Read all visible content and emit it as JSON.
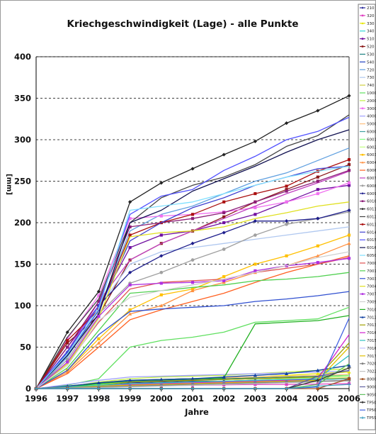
{
  "chart_data": {
    "type": "line",
    "title": "Kriechgeschwindigkeit (Lage) - alle Punkte",
    "xlabel": "Jahre",
    "ylabel": "[mm]",
    "x": [
      1996,
      1997,
      1998,
      1999,
      2000,
      2001,
      2002,
      2003,
      2004,
      2005,
      2006
    ],
    "xlim": [
      1996,
      2006
    ],
    "ylim": [
      0,
      400
    ],
    "yticks": [
      0,
      50,
      100,
      150,
      200,
      250,
      300,
      350,
      400
    ],
    "grid": "horizontal dashed",
    "legend_position": "right",
    "series": [
      {
        "name": "210",
        "color": "#2a2a9a",
        "marker": "diamond",
        "values": [
          0,
          1,
          4,
          7,
          8,
          9,
          9,
          10,
          11,
          12,
          12
        ]
      },
      {
        "name": "320",
        "color": "#e040c0",
        "marker": "square",
        "values": [
          0,
          0.5,
          2,
          3,
          3.5,
          4,
          4.5,
          5,
          5,
          5.5,
          6
        ]
      },
      {
        "name": "330",
        "color": "#e6e600",
        "marker": "triangle",
        "values": [
          0,
          2,
          6,
          9,
          11,
          12,
          13,
          14,
          16,
          18,
          20
        ]
      },
      {
        "name": "340",
        "color": "#30d8d8",
        "marker": "none",
        "values": [
          0,
          1,
          3,
          5,
          6,
          7,
          8,
          9,
          10,
          11,
          12
        ]
      },
      {
        "name": "510",
        "color": "#7010a0",
        "marker": "square",
        "values": [
          0,
          50,
          100,
          170,
          185,
          190,
          200,
          210,
          225,
          240,
          245
        ]
      },
      {
        "name": "520",
        "color": "#8b1a1a",
        "marker": "square",
        "values": [
          0,
          55,
          88,
          155,
          175,
          190,
          207,
          225,
          240,
          255,
          270
        ]
      },
      {
        "name": "530",
        "color": "#1a8080",
        "marker": "none",
        "values": [
          0,
          3,
          6,
          9,
          10,
          11,
          12,
          13,
          14,
          15,
          16
        ]
      },
      {
        "name": "540",
        "color": "#2040c0",
        "marker": "none",
        "values": [
          0,
          2,
          5,
          8,
          9,
          10,
          11,
          12,
          13,
          14,
          15
        ]
      },
      {
        "name": "720",
        "color": "#60a0e0",
        "marker": "none",
        "values": [
          0,
          38,
          95,
          190,
          210,
          220,
          235,
          250,
          260,
          275,
          290
        ]
      },
      {
        "name": "730",
        "color": "#b0c8f0",
        "marker": "none",
        "values": [
          0,
          40,
          98,
          150,
          165,
          170,
          175,
          180,
          185,
          190,
          195
        ]
      },
      {
        "name": "740",
        "color": "#d0d040",
        "marker": "none",
        "values": [
          0,
          2,
          4,
          6,
          7,
          8,
          9,
          10,
          11,
          12,
          13
        ]
      },
      {
        "name": "1000",
        "color": "#60e060",
        "marker": "none",
        "values": [
          0,
          4,
          12,
          50,
          58,
          62,
          68,
          80,
          82,
          84,
          98
        ]
      },
      {
        "name": "2000",
        "color": "#c0f040",
        "marker": "none",
        "values": [
          0,
          2,
          8,
          12,
          14,
          15,
          16,
          18,
          20,
          22,
          24
        ]
      },
      {
        "name": "3000",
        "color": "#f070f0",
        "marker": "square",
        "values": [
          0,
          60,
          112,
          205,
          208,
          210,
          213,
          218,
          225,
          235,
          248
        ]
      },
      {
        "name": "4000",
        "color": "#a0a0ff",
        "marker": "none",
        "values": [
          0,
          5,
          10,
          14,
          15,
          16,
          17,
          18,
          19,
          20,
          21
        ]
      },
      {
        "name": "5000",
        "color": "#ffc080",
        "marker": "none",
        "values": [
          0,
          3,
          7,
          10,
          11,
          12,
          13,
          14,
          15,
          16,
          17
        ]
      },
      {
        "name": "6000",
        "color": "#40a0a0",
        "marker": "none",
        "values": [
          0,
          1,
          3,
          5,
          6,
          7,
          8,
          9,
          10,
          11,
          12
        ]
      },
      {
        "name": "6001",
        "color": "#80ff80",
        "marker": "none",
        "values": [
          0,
          2,
          5,
          8,
          9,
          10,
          11,
          12,
          13,
          14,
          16
        ]
      },
      {
        "name": "6002",
        "color": "#c0ff80",
        "marker": "none",
        "values": [
          0,
          1,
          4,
          6,
          7,
          8,
          9,
          10,
          12,
          13,
          15
        ]
      },
      {
        "name": "6003",
        "color": "#ffc000",
        "marker": "square",
        "values": [
          0,
          22,
          60,
          95,
          113,
          120,
          135,
          150,
          160,
          172,
          185
        ]
      },
      {
        "name": "6004",
        "color": "#ff9040",
        "marker": "triangle",
        "values": [
          0,
          20,
          55,
          90,
          100,
          118,
          128,
          140,
          148,
          160,
          175
        ]
      },
      {
        "name": "6006",
        "color": "#ff6020",
        "marker": "none",
        "values": [
          0,
          18,
          50,
          83,
          95,
          105,
          115,
          128,
          140,
          150,
          160
        ]
      },
      {
        "name": "6007",
        "color": "#c040c0",
        "marker": "none",
        "values": [
          0,
          45,
          105,
          155,
          175,
          190,
          205,
          220,
          235,
          248,
          262
        ]
      },
      {
        "name": "6008",
        "color": "#a0a0a0",
        "marker": "circle",
        "values": [
          0,
          35,
          90,
          127,
          140,
          155,
          168,
          185,
          198,
          205,
          213
        ]
      },
      {
        "name": "6009",
        "color": "#1e1e8c",
        "marker": "diamond",
        "values": [
          0,
          44,
          100,
          140,
          160,
          175,
          188,
          202,
          202,
          205,
          215
        ]
      },
      {
        "name": "6010",
        "color": "#8c1e78",
        "marker": "square",
        "values": [
          0,
          50,
          105,
          195,
          200,
          205,
          212,
          225,
          238,
          250,
          263
        ]
      },
      {
        "name": "6011",
        "color": "#222222",
        "marker": "diamond",
        "values": [
          0,
          68,
          117,
          225,
          248,
          265,
          282,
          298,
          320,
          335,
          353
        ]
      },
      {
        "name": "6012",
        "color": "#444444",
        "marker": "none",
        "values": [
          0,
          62,
          108,
          200,
          230,
          245,
          255,
          270,
          292,
          305,
          330
        ]
      },
      {
        "name": "6013",
        "color": "#aa1010",
        "marker": "square",
        "values": [
          0,
          58,
          95,
          185,
          200,
          210,
          225,
          235,
          244,
          262,
          276
        ]
      },
      {
        "name": "6014",
        "color": "#4040d0",
        "marker": "none",
        "values": [
          0,
          42,
          94,
          178,
          200,
          218,
          230,
          245,
          255,
          265,
          268
        ]
      },
      {
        "name": "6015",
        "color": "#5050ff",
        "marker": "none",
        "values": [
          0,
          45,
          100,
          210,
          232,
          240,
          263,
          280,
          300,
          310,
          327
        ]
      },
      {
        "name": "6016",
        "color": "#101050",
        "marker": "none",
        "values": [
          0,
          40,
          90,
          200,
          215,
          238,
          253,
          268,
          285,
          300,
          312
        ]
      },
      {
        "name": "6050",
        "color": "#80e0ff",
        "marker": "none",
        "values": [
          0,
          42,
          96,
          215,
          220,
          225,
          235,
          245,
          255,
          262,
          268
        ]
      },
      {
        "name": "7000",
        "color": "#e05050",
        "marker": "none",
        "values": [
          0,
          30,
          80,
          120,
          128,
          130,
          132,
          140,
          145,
          150,
          158
        ]
      },
      {
        "name": "7001",
        "color": "#50d050",
        "marker": "none",
        "values": [
          0,
          25,
          70,
          115,
          118,
          122,
          125,
          130,
          132,
          135,
          140
        ]
      },
      {
        "name": "7003",
        "color": "#3050d0",
        "marker": "none",
        "values": [
          0,
          22,
          65,
          93,
          96,
          98,
          100,
          105,
          108,
          112,
          117
        ]
      },
      {
        "name": "7004",
        "color": "#e0e020",
        "marker": "none",
        "values": [
          0,
          30,
          85,
          183,
          188,
          190,
          195,
          205,
          212,
          220,
          225
        ]
      },
      {
        "name": "7007",
        "color": "#b030e0",
        "marker": "square",
        "values": [
          0,
          32,
          87,
          125,
          127,
          128,
          130,
          142,
          148,
          152,
          157
        ]
      },
      {
        "name": "7009",
        "color": "#d0d0d0",
        "marker": "none",
        "values": [
          0,
          28,
          82,
          110,
          118,
          125,
          132,
          140,
          148,
          158,
          165
        ]
      },
      {
        "name": "7010",
        "color": "#20b020",
        "marker": "none",
        "values": [
          0,
          2,
          6,
          10,
          11,
          12,
          13,
          78,
          80,
          82,
          88
        ]
      },
      {
        "name": "7012",
        "color": "#1040a0",
        "marker": "triangle",
        "values": [
          0,
          3,
          7,
          10,
          11,
          12,
          14,
          16,
          18,
          22,
          28
        ]
      },
      {
        "name": "7013",
        "color": "#a0a000",
        "marker": "none",
        "values": [
          0,
          1,
          4,
          8,
          9,
          10,
          11,
          12,
          13,
          14,
          55
        ]
      },
      {
        "name": "7016",
        "color": "#d020d0",
        "marker": "none",
        "values": [
          0,
          1,
          3,
          5,
          6,
          7,
          8,
          9,
          10,
          12,
          65
        ]
      },
      {
        "name": "7015",
        "color": "#30c0c0",
        "marker": "none",
        "values": [
          0,
          2,
          4,
          6,
          7,
          8,
          9,
          10,
          11,
          12,
          40
        ]
      },
      {
        "name": "7016",
        "color": "#c0c0ff",
        "marker": "none",
        "values": [
          0,
          1,
          2,
          3,
          4,
          5,
          6,
          7,
          8,
          9,
          10
        ]
      },
      {
        "name": "7017",
        "color": "#e0c000",
        "marker": "none",
        "values": [
          0,
          1,
          3,
          4,
          5,
          6,
          7,
          8,
          9,
          10,
          50
        ]
      },
      {
        "name": "7020",
        "color": "#808080",
        "marker": "circle",
        "values": [
          0,
          1,
          2,
          3,
          4,
          5,
          6,
          7,
          8,
          9,
          10
        ]
      },
      {
        "name": "7022",
        "color": "#c0c0c0",
        "marker": "none",
        "values": [
          0,
          0.5,
          1,
          2,
          3,
          4,
          5,
          6,
          7,
          8,
          9
        ]
      },
      {
        "name": "8000",
        "color": "#a05020",
        "marker": "square",
        "values": [
          0,
          0,
          0,
          0,
          0,
          0,
          0,
          0,
          0,
          0,
          12
        ]
      },
      {
        "name": "9000",
        "color": "#6060a0",
        "marker": "none",
        "values": [
          0,
          0,
          0,
          0,
          0,
          0,
          0,
          0,
          0,
          15,
          22
        ]
      },
      {
        "name": "9050",
        "color": "#60c060",
        "marker": "none",
        "values": [
          0,
          0,
          0,
          0,
          0,
          0,
          0,
          0,
          0,
          5,
          30
        ]
      },
      {
        "name": "TP500",
        "color": "#303030",
        "marker": "plus",
        "values": [
          0,
          0,
          0,
          0,
          0,
          0,
          0,
          0,
          0,
          10,
          25
        ]
      },
      {
        "name": "TP506",
        "color": "#4060e0",
        "marker": "none",
        "values": [
          0,
          0,
          0,
          0,
          0,
          0,
          0,
          0,
          0,
          2,
          85
        ]
      },
      {
        "name": "TP5S",
        "color": "#40a0c0",
        "marker": "plus",
        "values": [
          0,
          0,
          0,
          0,
          0,
          0,
          0,
          0,
          0,
          3,
          5
        ]
      }
    ]
  }
}
